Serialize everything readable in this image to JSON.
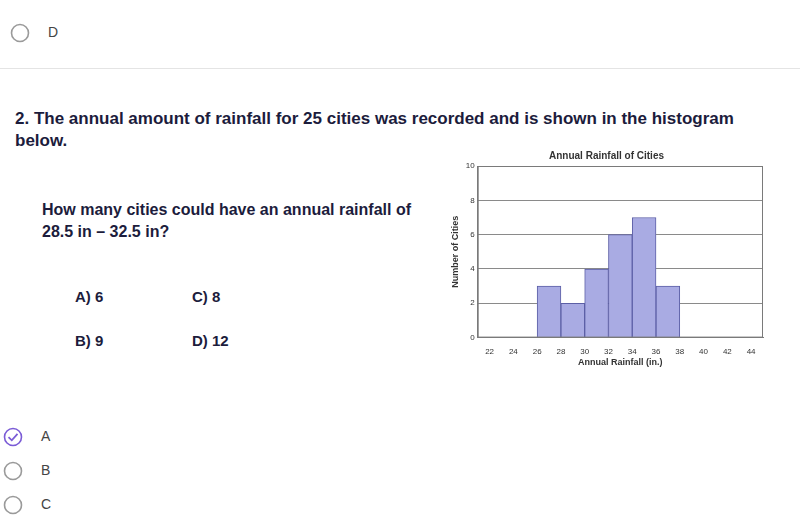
{
  "top_options": [
    {
      "label": "D",
      "selected": false
    }
  ],
  "question": {
    "number": "2.",
    "text": "The annual amount of rainfall for 25 cities was recorded and is shown in the histogram below.",
    "prompt": "How many cities could have an annual rainfall of 28.5 in – 32.5 in?",
    "choices": [
      {
        "letter": "A)",
        "value": 6
      },
      {
        "letter": "C)",
        "value": 8
      },
      {
        "letter": "B)",
        "value": 9
      },
      {
        "letter": "D)",
        "value": 12
      }
    ]
  },
  "chart_data": {
    "type": "histogram",
    "title": "Annual Rainfall of Cities",
    "x_label": "Annual Rainfall (in.)",
    "y_label": "Number of Cities",
    "bins": [
      22,
      24,
      26,
      28,
      30,
      32,
      34,
      36,
      38,
      40,
      42,
      44
    ],
    "values": [
      0,
      0,
      3,
      2,
      4,
      6,
      7,
      3,
      0,
      0,
      0
    ],
    "color": "#a9abe3",
    "xlim": [
      22,
      44
    ],
    "xticks": [
      22,
      24,
      26,
      28,
      30,
      32,
      34,
      36,
      38,
      40,
      42,
      44
    ],
    "ylim": [
      0,
      10
    ],
    "yticks": [
      0,
      2,
      4,
      6,
      8,
      10
    ],
    "grid": true
  },
  "answer_options": [
    {
      "label": "A",
      "selected": true
    },
    {
      "label": "B",
      "selected": false
    },
    {
      "label": "C",
      "selected": false
    }
  ]
}
